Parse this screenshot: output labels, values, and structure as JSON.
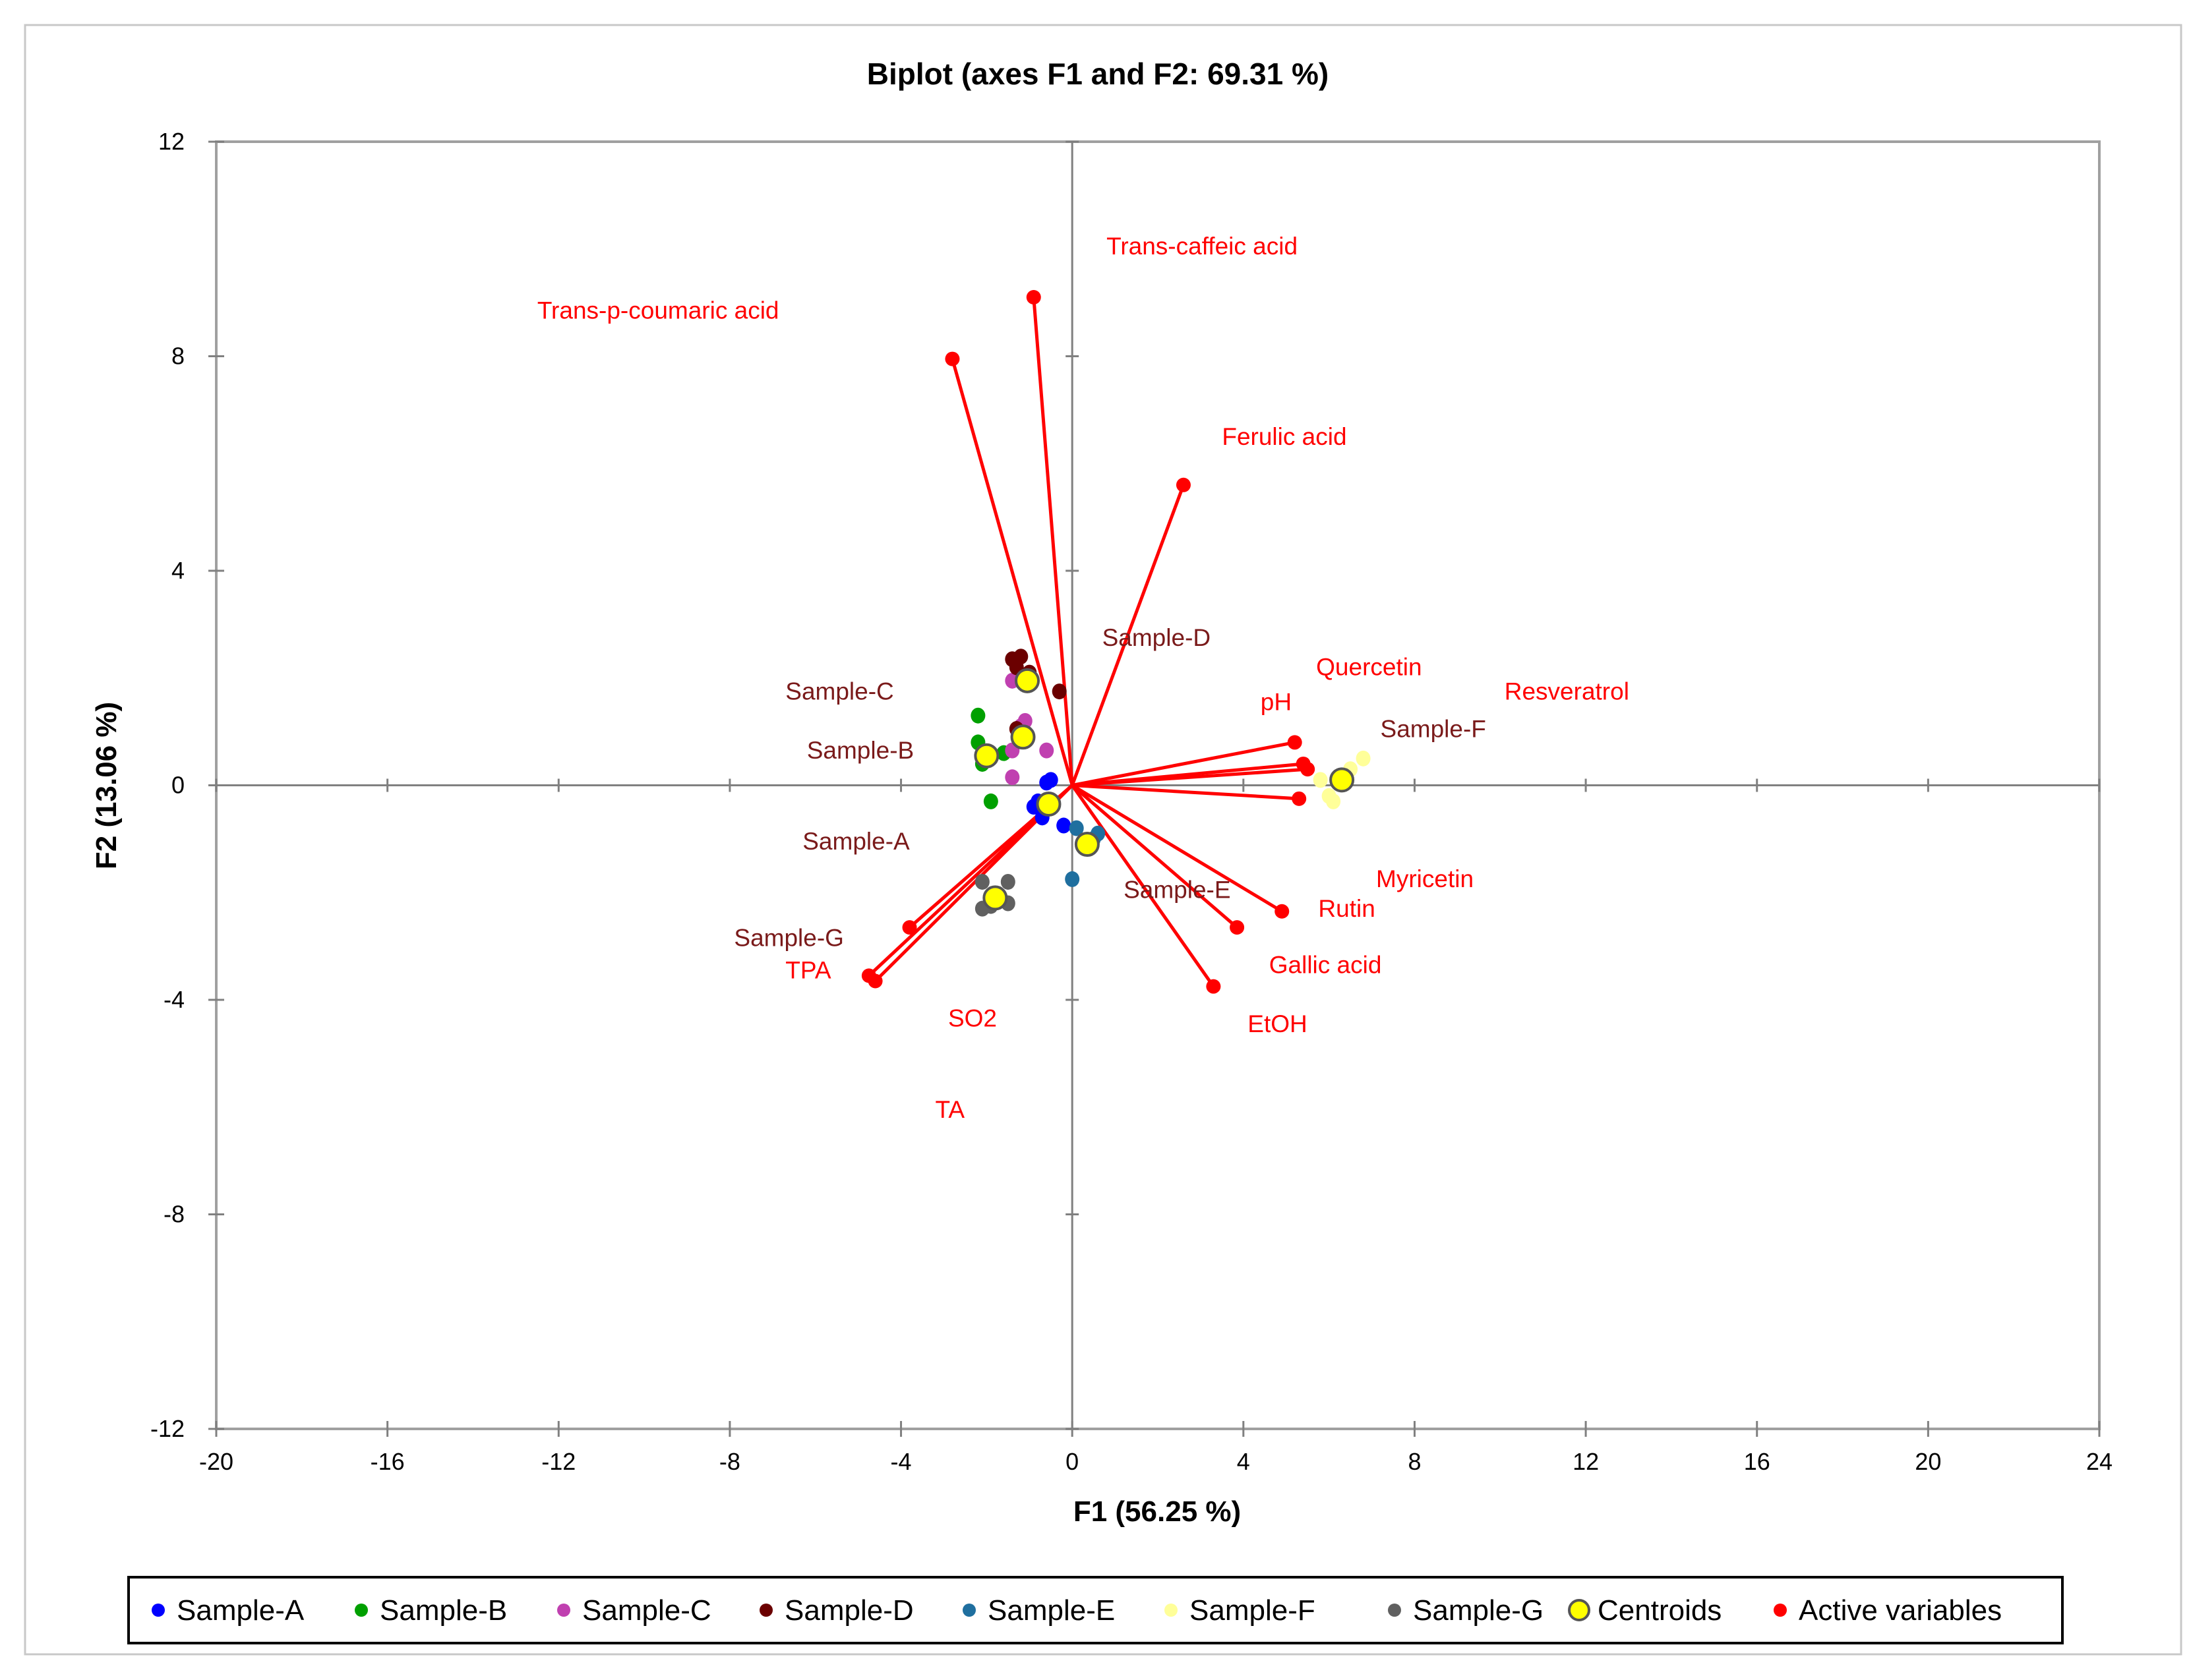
{
  "chart_data": {
    "type": "scatter",
    "title": "Biplot (axes F1 and F2: 69.31 %)",
    "xlabel": "F1 (56.25 %)",
    "ylabel": "F2 (13.06 %)",
    "xlim": [
      -20,
      24
    ],
    "ylim": [
      -12,
      12
    ],
    "xticks": [
      -20,
      -16,
      -12,
      -8,
      -4,
      0,
      4,
      8,
      12,
      16,
      20,
      24
    ],
    "yticks": [
      -12,
      -8,
      -4,
      0,
      4,
      8,
      12
    ],
    "grid": false,
    "legend_position": "bottom",
    "series": [
      {
        "name": "Sample-A",
        "color": "#0000ff",
        "label": "Sample-A",
        "label_at": [
          -6.3,
          -1.2
        ],
        "points": [
          [
            -0.5,
            0.1
          ],
          [
            -0.6,
            0.05
          ],
          [
            -0.9,
            -0.4
          ],
          [
            -0.7,
            -0.6
          ],
          [
            -0.2,
            -0.75
          ],
          [
            -0.8,
            -0.3
          ]
        ]
      },
      {
        "name": "Sample-B",
        "color": "#00a000",
        "label": "Sample-B",
        "label_at": [
          -6.2,
          0.5
        ],
        "points": [
          [
            -2.2,
            1.3
          ],
          [
            -2.2,
            0.8
          ],
          [
            -2.1,
            0.4
          ],
          [
            -1.9,
            -0.3
          ],
          [
            -1.6,
            0.6
          ],
          [
            -2.1,
            0.55
          ]
        ]
      },
      {
        "name": "Sample-C",
        "color": "#c040b0",
        "label": "Sample-C",
        "label_at": [
          -6.7,
          1.6
        ],
        "points": [
          [
            -1.4,
            1.95
          ],
          [
            -1.1,
            1.2
          ],
          [
            -1.2,
            1.1
          ],
          [
            -1.4,
            0.65
          ],
          [
            -0.6,
            0.65
          ],
          [
            -1.4,
            0.15
          ]
        ]
      },
      {
        "name": "Sample-D",
        "color": "#6b0000",
        "label": "Sample-D",
        "label_at": [
          0.7,
          2.6
        ],
        "points": [
          [
            -1.4,
            2.35
          ],
          [
            -1.2,
            2.4
          ],
          [
            -1.3,
            2.2
          ],
          [
            -0.3,
            1.75
          ],
          [
            -1.3,
            1.05
          ],
          [
            -1.0,
            2.1
          ]
        ]
      },
      {
        "name": "Sample-E",
        "color": "#1f6f9f",
        "label": "Sample-E",
        "label_at": [
          1.2,
          -2.1
        ],
        "points": [
          [
            0.1,
            -0.8
          ],
          [
            0.6,
            -0.9
          ],
          [
            0.5,
            -1.0
          ],
          [
            0.0,
            -1.75
          ],
          [
            0.3,
            -1.15
          ],
          [
            0.4,
            -1.05
          ]
        ]
      },
      {
        "name": "Sample-F",
        "color": "#ffff99",
        "label": "Sample-F",
        "label_at": [
          7.2,
          0.9
        ],
        "points": [
          [
            6.8,
            0.5
          ],
          [
            6.5,
            0.3
          ],
          [
            5.8,
            0.1
          ],
          [
            6.0,
            -0.2
          ],
          [
            6.1,
            -0.3
          ],
          [
            6.4,
            0.15
          ]
        ]
      },
      {
        "name": "Sample-G",
        "color": "#606060",
        "label": "Sample-G",
        "label_at": [
          -7.9,
          -3.0
        ],
        "points": [
          [
            -2.1,
            -1.8
          ],
          [
            -1.5,
            -1.8
          ],
          [
            -2.1,
            -2.3
          ],
          [
            -1.5,
            -2.2
          ],
          [
            -1.9,
            -2.25
          ],
          [
            -1.7,
            -2.1
          ]
        ]
      }
    ],
    "centroids": {
      "name": "Centroids",
      "fill": "#ffff00",
      "stroke": "#555555",
      "points": [
        [
          -0.55,
          -0.35
        ],
        [
          -2.0,
          0.55
        ],
        [
          -1.15,
          0.9
        ],
        [
          -1.05,
          1.95
        ],
        [
          0.35,
          -1.1
        ],
        [
          6.3,
          0.1
        ],
        [
          -1.8,
          -2.1
        ]
      ]
    },
    "active_variables": {
      "name": "Active variables",
      "color": "#ff0000",
      "items": [
        {
          "name": "Trans-caffeic acid",
          "x": -0.9,
          "y": 9.1,
          "label_at": [
            0.8,
            9.9
          ]
        },
        {
          "name": "Trans-p-coumaric acid",
          "x": -2.8,
          "y": 7.95,
          "label_at": [
            -12.5,
            8.7
          ]
        },
        {
          "name": "Ferulic acid",
          "x": 2.6,
          "y": 5.6,
          "label_at": [
            3.5,
            6.35
          ]
        },
        {
          "name": "Quercetin",
          "x": 5.4,
          "y": 0.4,
          "label_at": [
            5.7,
            2.05
          ]
        },
        {
          "name": "pH",
          "x": 5.2,
          "y": 0.8,
          "label_at": [
            4.4,
            1.4
          ]
        },
        {
          "name": "Resveratrol",
          "x": 5.5,
          "y": 0.3,
          "label_at": [
            10.1,
            1.6
          ]
        },
        {
          "name": "Myricetin",
          "x": 5.3,
          "y": -0.25,
          "label_at": [
            7.1,
            -1.9
          ]
        },
        {
          "name": "Rutin",
          "x": 4.9,
          "y": -2.35,
          "label_at": [
            5.75,
            -2.45
          ]
        },
        {
          "name": "Gallic acid",
          "x": 3.85,
          "y": -2.65,
          "label_at": [
            4.6,
            -3.5
          ]
        },
        {
          "name": "EtOH",
          "x": 3.3,
          "y": -3.75,
          "label_at": [
            4.1,
            -4.6
          ]
        },
        {
          "name": "TPA",
          "x": -3.8,
          "y": -2.65,
          "label_at": [
            -6.7,
            -3.6
          ]
        },
        {
          "name": "SO2",
          "x": -4.75,
          "y": -3.55,
          "label_at": [
            -2.9,
            -4.5
          ]
        },
        {
          "name": "TA",
          "x": -4.6,
          "y": -3.65,
          "label_at": [
            -3.2,
            -6.2
          ]
        }
      ]
    },
    "legend": [
      "Sample-A",
      "Sample-B",
      "Sample-C",
      "Sample-D",
      "Sample-E",
      "Sample-F",
      "Sample-G",
      "Centroids",
      "Active variables"
    ]
  }
}
